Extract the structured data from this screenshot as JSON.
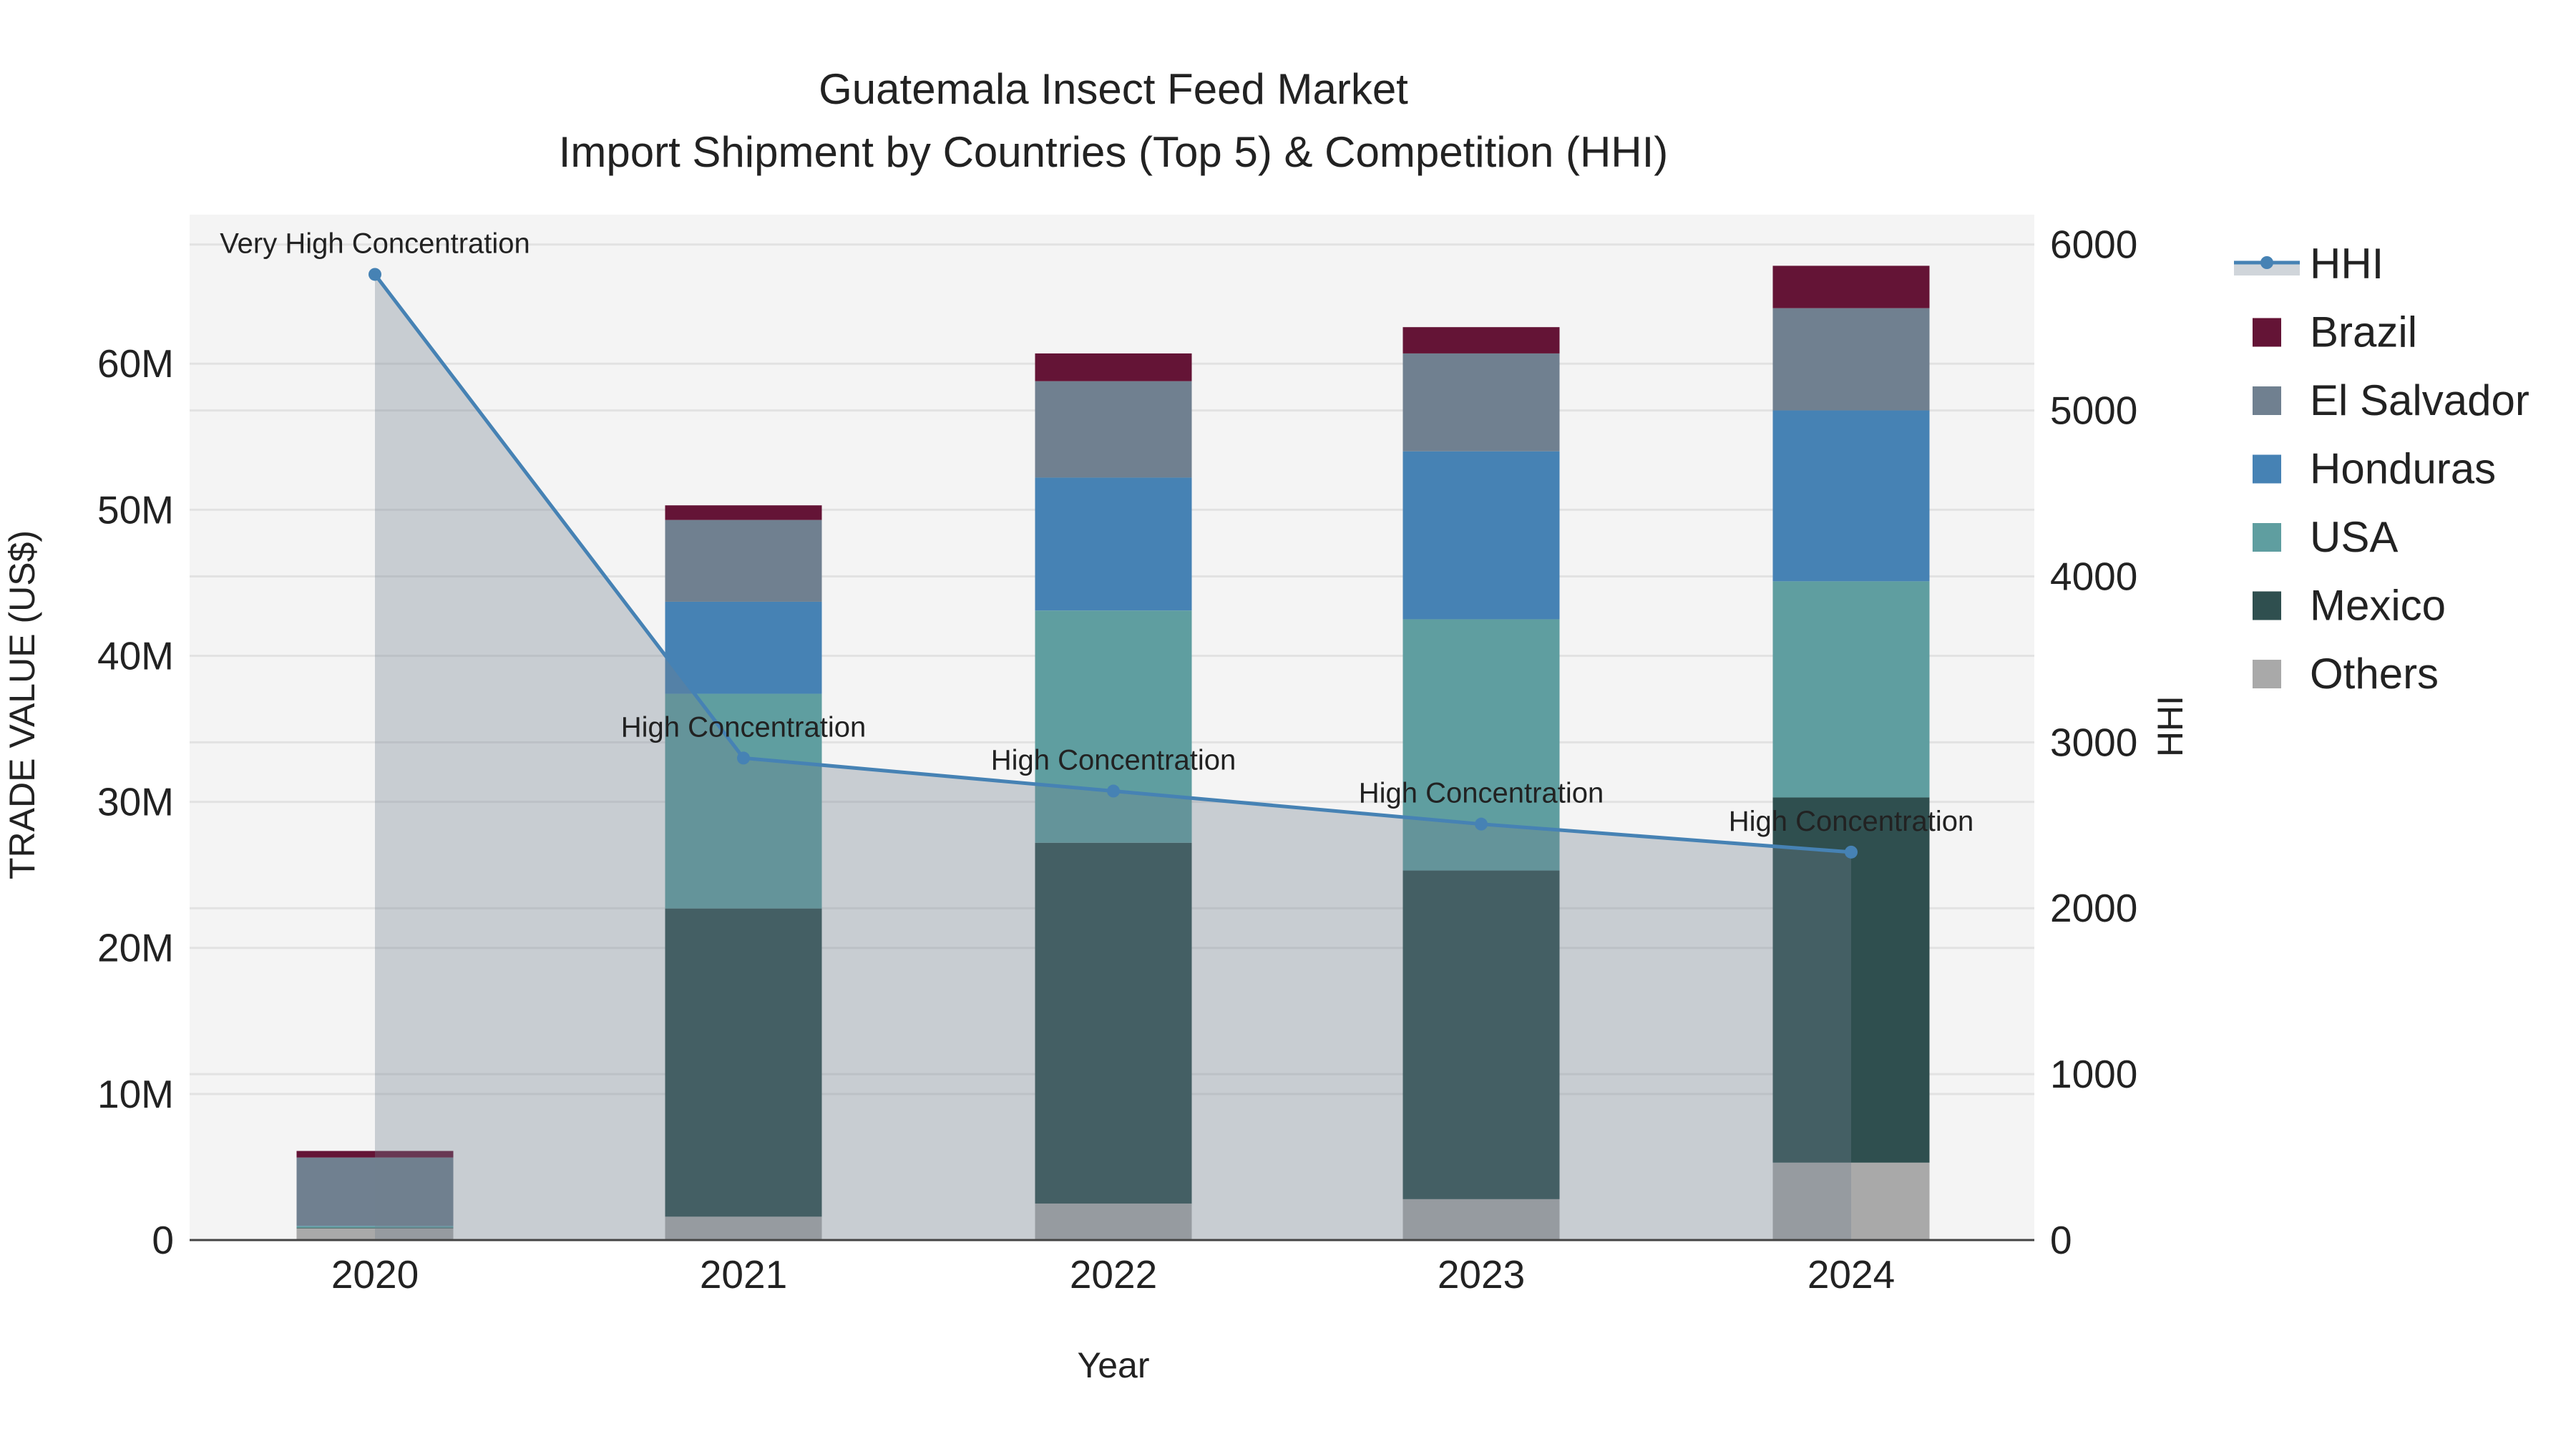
{
  "chart_data": {
    "type": "bar",
    "title": "Guatemala Insect Feed Market",
    "subtitle": "Import Shipment by Countries (Top 5) & Competition (HHI)",
    "xlabel": "Year",
    "ylabel": "TRADE VALUE (US$)",
    "y2label": "HHI",
    "categories": [
      "2020",
      "2021",
      "2022",
      "2023",
      "2024"
    ],
    "ylim": [
      0,
      70200000
    ],
    "y2lim": [
      0,
      6180
    ],
    "yticks": [
      0,
      10000000,
      20000000,
      30000000,
      40000000,
      50000000,
      60000000
    ],
    "ytick_labels": [
      "0",
      "10M",
      "20M",
      "30M",
      "40M",
      "50M",
      "60M"
    ],
    "y2ticks": [
      0,
      1000,
      2000,
      3000,
      4000,
      5000,
      6000
    ],
    "y2tick_labels": [
      "0",
      "1000",
      "2000",
      "3000",
      "4000",
      "5000",
      "6000"
    ],
    "grid": true,
    "legend_position": "right",
    "series": [
      {
        "name": "Others",
        "color": "#A9A9A9",
        "values": [
          800000,
          1600000,
          2500000,
          2800000,
          5300000
        ]
      },
      {
        "name": "Mexico",
        "color": "#2F4F4F",
        "values": [
          50000,
          21100000,
          24700000,
          22500000,
          25000000
        ]
      },
      {
        "name": "USA",
        "color": "#5F9EA0",
        "values": [
          100000,
          14700000,
          15900000,
          17200000,
          14800000
        ]
      },
      {
        "name": "Honduras",
        "color": "#4682B4",
        "values": [
          20000,
          6300000,
          9100000,
          11500000,
          11700000
        ]
      },
      {
        "name": "El Salvador",
        "color": "#708090",
        "values": [
          4680000,
          5600000,
          6600000,
          6700000,
          7000000
        ]
      },
      {
        "name": "Brazil",
        "color": "#641436",
        "values": [
          450000,
          1000000,
          1900000,
          1800000,
          2900000
        ]
      }
    ],
    "hhi": {
      "name": "HHI",
      "color": "#4682B4",
      "values": [
        5820,
        2905,
        2706,
        2507,
        2338
      ],
      "annotations": [
        "Very High Concentration",
        "High Concentration",
        "High Concentration",
        "High Concentration",
        "High Concentration"
      ]
    },
    "legend_order": [
      "HHI",
      "Brazil",
      "El Salvador",
      "Honduras",
      "USA",
      "Mexico",
      "Others"
    ]
  }
}
